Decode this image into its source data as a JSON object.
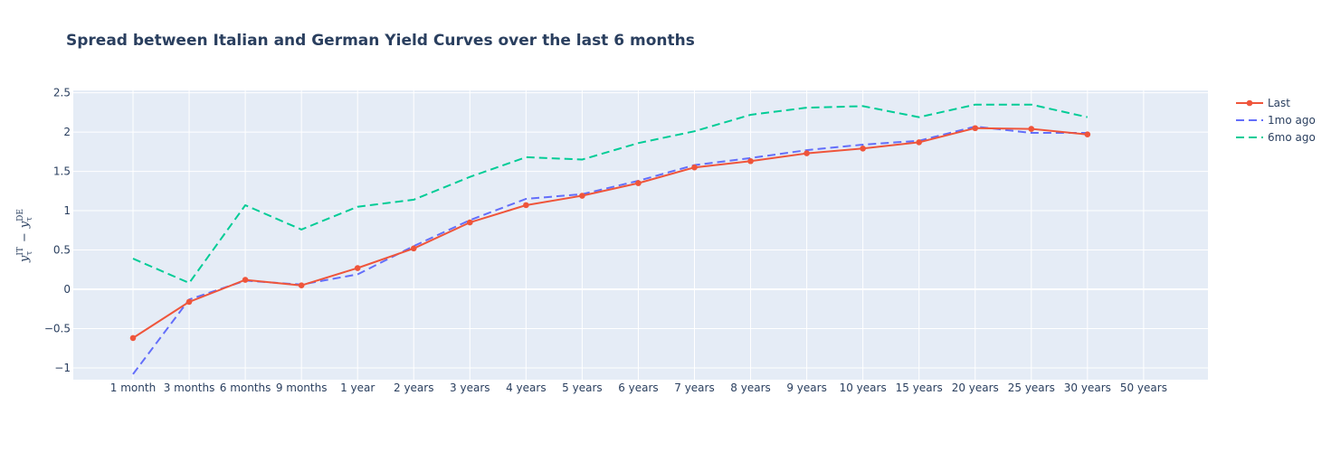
{
  "chart_data": {
    "type": "line",
    "title": "Spread between Italian and German Yield Curves over the last 6 months",
    "xlabel": "",
    "ylabel": {
      "base_left": "y",
      "sub_left": "τ",
      "sup_left": "IT",
      "operator": "−",
      "base_right": "y",
      "sub_right": "τ",
      "sup_right": "DE"
    },
    "ylim": [
      -1.15,
      2.53
    ],
    "yticks": [
      -1,
      -0.5,
      0,
      0.5,
      1,
      1.5,
      2,
      2.5
    ],
    "ytick_labels": [
      "−1",
      "−0.5",
      "0",
      "0.5",
      "1",
      "1.5",
      "2",
      "2.5"
    ],
    "grid": true,
    "legend_position": "top-right",
    "categories": [
      "1 month",
      "3 months",
      "6 months",
      "9 months",
      "1 year",
      "2 years",
      "3 years",
      "4 years",
      "5 years",
      "6 years",
      "7 years",
      "8 years",
      "9 years",
      "10 years",
      "15 years",
      "20 years",
      "25 years",
      "30 years",
      "50 years"
    ],
    "series": [
      {
        "name": "Last",
        "color": "#ef553b",
        "dash": "solid",
        "markers": true,
        "values": [
          -0.62,
          -0.16,
          0.12,
          0.05,
          0.27,
          0.52,
          0.85,
          1.07,
          1.19,
          1.35,
          1.55,
          1.63,
          1.73,
          1.79,
          1.87,
          2.05,
          2.04,
          1.97,
          null
        ]
      },
      {
        "name": "1mo ago",
        "color": "#636efa",
        "dash": "dash",
        "markers": false,
        "values": [
          -1.08,
          -0.13,
          0.11,
          0.06,
          0.19,
          0.55,
          0.88,
          1.15,
          1.21,
          1.38,
          1.58,
          1.67,
          1.77,
          1.84,
          1.89,
          2.07,
          1.99,
          1.99,
          null
        ]
      },
      {
        "name": "6mo ago",
        "color": "#00cc96",
        "dash": "dash",
        "markers": false,
        "values": [
          0.39,
          0.08,
          1.07,
          0.76,
          1.05,
          1.14,
          1.43,
          1.68,
          1.65,
          1.86,
          2.01,
          2.22,
          2.31,
          2.33,
          2.19,
          2.35,
          2.35,
          2.19,
          null
        ]
      }
    ]
  },
  "colors": {
    "plot_background": "#e5ecf6",
    "grid": "#ffffff",
    "text": "#2a3f5f"
  }
}
